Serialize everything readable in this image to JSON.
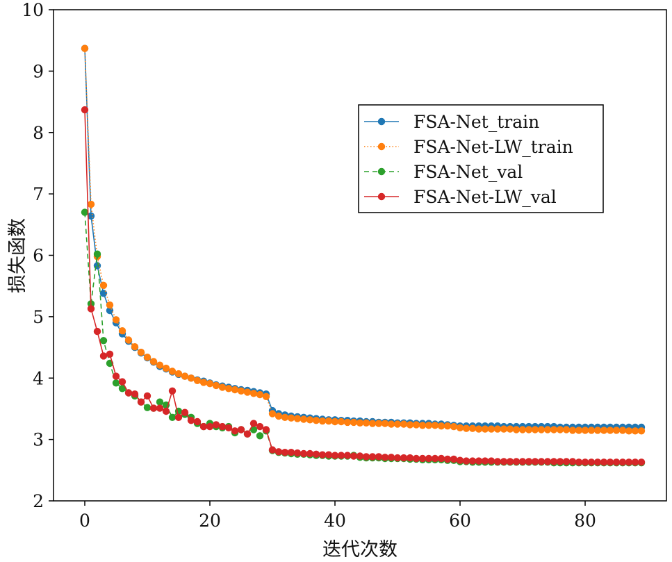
{
  "chart_data": {
    "type": "line",
    "xlabel": "迭代次数",
    "ylabel": "损失函数",
    "xlim": [
      -5,
      93
    ],
    "ylim": [
      2,
      10
    ],
    "xticks": [
      0,
      20,
      40,
      60,
      80
    ],
    "yticks": [
      2,
      3,
      4,
      5,
      6,
      7,
      8,
      9,
      10
    ],
    "grid": false,
    "legend_position": "upper right",
    "series": [
      {
        "name": "FSA-Net_train",
        "color": "#1f77b4",
        "line_style": "solid",
        "x": [
          0,
          1,
          2,
          3,
          4,
          5,
          6,
          7,
          8,
          9,
          10,
          11,
          12,
          13,
          14,
          15,
          16,
          17,
          18,
          19,
          20,
          21,
          22,
          23,
          24,
          25,
          26,
          27,
          28,
          29,
          30,
          31,
          32,
          33,
          34,
          35,
          36,
          37,
          38,
          39,
          40,
          41,
          42,
          43,
          44,
          45,
          46,
          47,
          48,
          49,
          50,
          51,
          52,
          53,
          54,
          55,
          56,
          57,
          58,
          59,
          60,
          61,
          62,
          63,
          64,
          65,
          66,
          67,
          68,
          69,
          70,
          71,
          72,
          73,
          74,
          75,
          76,
          77,
          78,
          79,
          80,
          81,
          82,
          83,
          84,
          85,
          86,
          87,
          88,
          89
        ],
        "values": [
          9.37,
          6.64,
          5.83,
          5.38,
          5.1,
          4.9,
          4.72,
          4.6,
          4.5,
          4.41,
          4.33,
          4.26,
          4.19,
          4.15,
          4.1,
          4.06,
          4.03,
          4.0,
          3.97,
          3.95,
          3.92,
          3.89,
          3.87,
          3.85,
          3.83,
          3.81,
          3.8,
          3.78,
          3.76,
          3.74,
          3.47,
          3.42,
          3.4,
          3.38,
          3.37,
          3.36,
          3.35,
          3.34,
          3.33,
          3.32,
          3.32,
          3.31,
          3.31,
          3.3,
          3.3,
          3.29,
          3.29,
          3.28,
          3.28,
          3.28,
          3.27,
          3.27,
          3.27,
          3.26,
          3.26,
          3.26,
          3.25,
          3.25,
          3.24,
          3.23,
          3.22,
          3.22,
          3.22,
          3.22,
          3.22,
          3.22,
          3.22,
          3.21,
          3.21,
          3.21,
          3.21,
          3.21,
          3.21,
          3.21,
          3.21,
          3.21,
          3.2,
          3.2,
          3.2,
          3.2,
          3.2,
          3.2,
          3.2,
          3.2,
          3.2,
          3.2,
          3.2,
          3.2,
          3.2,
          3.2
        ]
      },
      {
        "name": "FSA-Net-LW_train",
        "color": "#ff7f0e",
        "line_style": "dotted",
        "x": [
          0,
          1,
          2,
          3,
          4,
          5,
          6,
          7,
          8,
          9,
          10,
          11,
          12,
          13,
          14,
          15,
          16,
          17,
          18,
          19,
          20,
          21,
          22,
          23,
          24,
          25,
          26,
          27,
          28,
          29,
          30,
          31,
          32,
          33,
          34,
          35,
          36,
          37,
          38,
          39,
          40,
          41,
          42,
          43,
          44,
          45,
          46,
          47,
          48,
          49,
          50,
          51,
          52,
          53,
          54,
          55,
          56,
          57,
          58,
          59,
          60,
          61,
          62,
          63,
          64,
          65,
          66,
          67,
          68,
          69,
          70,
          71,
          72,
          73,
          74,
          75,
          76,
          77,
          78,
          79,
          80,
          81,
          82,
          83,
          84,
          85,
          86,
          87,
          88,
          89
        ],
        "values": [
          9.37,
          6.83,
          5.98,
          5.51,
          5.19,
          4.95,
          4.77,
          4.62,
          4.51,
          4.42,
          4.34,
          4.27,
          4.21,
          4.16,
          4.11,
          4.07,
          4.03,
          4.0,
          3.96,
          3.93,
          3.91,
          3.88,
          3.85,
          3.83,
          3.81,
          3.79,
          3.77,
          3.75,
          3.73,
          3.7,
          3.42,
          3.38,
          3.36,
          3.35,
          3.34,
          3.33,
          3.32,
          3.31,
          3.3,
          3.3,
          3.29,
          3.29,
          3.28,
          3.28,
          3.27,
          3.27,
          3.26,
          3.26,
          3.26,
          3.25,
          3.25,
          3.25,
          3.24,
          3.24,
          3.23,
          3.23,
          3.23,
          3.22,
          3.22,
          3.21,
          3.19,
          3.18,
          3.18,
          3.17,
          3.17,
          3.17,
          3.17,
          3.17,
          3.17,
          3.16,
          3.16,
          3.16,
          3.16,
          3.16,
          3.16,
          3.16,
          3.16,
          3.16,
          3.15,
          3.15,
          3.15,
          3.15,
          3.15,
          3.15,
          3.15,
          3.15,
          3.15,
          3.14,
          3.14,
          3.14
        ]
      },
      {
        "name": "FSA-Net_val",
        "color": "#2ca02c",
        "line_style": "dashed",
        "x": [
          0,
          1,
          2,
          3,
          4,
          5,
          6,
          7,
          8,
          9,
          10,
          11,
          12,
          13,
          14,
          15,
          16,
          17,
          18,
          19,
          20,
          21,
          22,
          23,
          24,
          25,
          26,
          27,
          28,
          29,
          30,
          31,
          32,
          33,
          34,
          35,
          36,
          37,
          38,
          39,
          40,
          41,
          42,
          43,
          44,
          45,
          46,
          47,
          48,
          49,
          50,
          51,
          52,
          53,
          54,
          55,
          56,
          57,
          58,
          59,
          60,
          61,
          62,
          63,
          64,
          65,
          66,
          67,
          68,
          69,
          70,
          71,
          72,
          73,
          74,
          75,
          76,
          77,
          78,
          79,
          80,
          81,
          82,
          83,
          84,
          85,
          86,
          87,
          88,
          89
        ],
        "values": [
          6.7,
          5.21,
          6.02,
          4.61,
          4.24,
          3.92,
          3.83,
          3.76,
          3.71,
          3.61,
          3.52,
          3.51,
          3.61,
          3.56,
          3.36,
          3.46,
          3.41,
          3.36,
          3.26,
          3.21,
          3.26,
          3.21,
          3.19,
          3.21,
          3.11,
          3.16,
          3.09,
          3.16,
          3.06,
          3.14,
          2.82,
          2.79,
          2.78,
          2.77,
          2.76,
          2.76,
          2.75,
          2.74,
          2.74,
          2.73,
          2.73,
          2.73,
          2.73,
          2.74,
          2.71,
          2.7,
          2.7,
          2.7,
          2.69,
          2.69,
          2.69,
          2.69,
          2.68,
          2.68,
          2.67,
          2.67,
          2.67,
          2.67,
          2.66,
          2.66,
          2.64,
          2.64,
          2.63,
          2.63,
          2.63,
          2.63,
          2.63,
          2.63,
          2.63,
          2.63,
          2.63,
          2.63,
          2.63,
          2.63,
          2.63,
          2.62,
          2.62,
          2.62,
          2.62,
          2.62,
          2.62,
          2.62,
          2.62,
          2.62,
          2.62,
          2.62,
          2.62,
          2.62,
          2.62,
          2.62
        ]
      },
      {
        "name": "FSA-Net-LW_val",
        "color": "#d62728",
        "line_style": "solid",
        "x": [
          0,
          1,
          2,
          3,
          4,
          5,
          6,
          7,
          8,
          9,
          10,
          11,
          12,
          13,
          14,
          15,
          16,
          17,
          18,
          19,
          20,
          21,
          22,
          23,
          24,
          25,
          26,
          27,
          28,
          29,
          30,
          31,
          32,
          33,
          34,
          35,
          36,
          37,
          38,
          39,
          40,
          41,
          42,
          43,
          44,
          45,
          46,
          47,
          48,
          49,
          50,
          51,
          52,
          53,
          54,
          55,
          56,
          57,
          58,
          59,
          60,
          61,
          62,
          63,
          64,
          65,
          66,
          67,
          68,
          69,
          70,
          71,
          72,
          73,
          74,
          75,
          76,
          77,
          78,
          79,
          80,
          81,
          82,
          83,
          84,
          85,
          86,
          87,
          88,
          89
        ],
        "values": [
          8.37,
          5.13,
          4.76,
          4.36,
          4.39,
          4.03,
          3.94,
          3.76,
          3.74,
          3.61,
          3.71,
          3.51,
          3.51,
          3.46,
          3.79,
          3.36,
          3.44,
          3.31,
          3.29,
          3.21,
          3.21,
          3.24,
          3.21,
          3.19,
          3.14,
          3.16,
          3.09,
          3.26,
          3.21,
          3.16,
          2.83,
          2.8,
          2.79,
          2.79,
          2.78,
          2.77,
          2.77,
          2.76,
          2.75,
          2.75,
          2.74,
          2.74,
          2.74,
          2.73,
          2.73,
          2.72,
          2.72,
          2.72,
          2.71,
          2.71,
          2.7,
          2.7,
          2.7,
          2.69,
          2.69,
          2.69,
          2.69,
          2.69,
          2.68,
          2.68,
          2.66,
          2.65,
          2.65,
          2.65,
          2.65,
          2.65,
          2.64,
          2.64,
          2.64,
          2.64,
          2.64,
          2.64,
          2.64,
          2.64,
          2.64,
          2.64,
          2.64,
          2.64,
          2.64,
          2.63,
          2.63,
          2.63,
          2.63,
          2.63,
          2.63,
          2.63,
          2.63,
          2.63,
          2.63,
          2.63
        ]
      }
    ]
  }
}
